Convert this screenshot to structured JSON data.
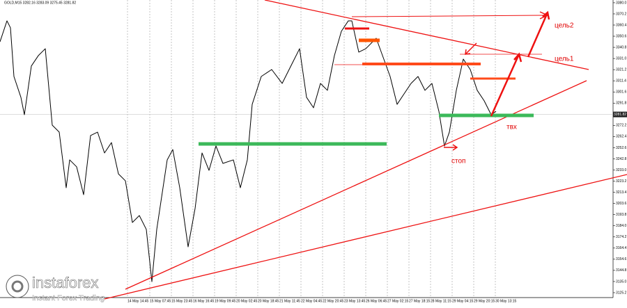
{
  "chart_data": {
    "type": "line",
    "title": "GOLD,M15 3282.16 3283.09 3275.45 3281.82",
    "x": [
      0,
      10,
      15,
      20,
      30,
      35,
      45,
      55,
      65,
      75,
      85,
      95,
      100,
      110,
      120,
      130,
      140,
      150,
      160,
      170,
      180,
      190,
      200,
      210,
      218,
      225,
      240,
      248,
      258,
      270,
      280,
      290,
      300,
      310,
      320,
      335,
      345,
      355,
      362,
      375,
      390,
      405,
      420,
      430,
      440,
      450,
      460,
      470,
      480,
      490,
      500,
      505,
      515,
      525,
      540,
      560,
      570,
      580,
      590,
      600,
      610,
      620,
      630,
      638,
      645,
      655,
      665,
      675,
      685,
      695,
      705,
      712
    ],
    "series": [
      {
        "name": "GOLD,M15",
        "color": "#000000",
        "values": [
          3345.7,
          3364.1,
          3358.0,
          3315.2,
          3296.9,
          3281.6,
          3324.4,
          3333.5,
          3339.6,
          3272.4,
          3266.3,
          3217.4,
          3241.9,
          3235.8,
          3211.3,
          3263.3,
          3266.3,
          3248.0,
          3257.1,
          3229.6,
          3223.5,
          3186.9,
          3193.0,
          3180.8,
          3134.9,
          3180.8,
          3241.9,
          3251.0,
          3217.4,
          3165.5,
          3199.1,
          3248.0,
          3232.7,
          3254.1,
          3238.8,
          3241.9,
          3217.4,
          3241.9,
          3290.7,
          3315.2,
          3321.3,
          3309.1,
          3327.4,
          3339.6,
          3296.9,
          3287.7,
          3309.1,
          3303.0,
          3333.5,
          3354.9,
          3364.1,
          3364.1,
          3336.6,
          3339.6,
          3348.8,
          3315.2,
          3290.7,
          3299.9,
          3309.1,
          3315.2,
          3303.0,
          3309.1,
          3284.6,
          3254.1,
          3266.3,
          3303.0,
          3330.5,
          3321.3,
          3303.0,
          3293.8,
          3281.6,
          3284.6
        ]
      }
    ],
    "xlim": [
      0,
      880
    ],
    "ylim": [
      3120.9,
      3382.4
    ],
    "current_price": 3281.82,
    "yticks": [
      {
        "value": 3380,
        "label": "3380.0"
      },
      {
        "value": 3370.2,
        "label": "3370.2"
      },
      {
        "value": 3360.4,
        "label": "3360.4"
      },
      {
        "value": 3350.6,
        "label": "3350.6"
      },
      {
        "value": 3340.8,
        "label": "3340.8"
      },
      {
        "value": 3331,
        "label": "3331.0"
      },
      {
        "value": 3321.2,
        "label": "3321.2"
      },
      {
        "value": 3311.4,
        "label": "3311.4"
      },
      {
        "value": 3301.6,
        "label": "3301.6"
      },
      {
        "value": 3291.8,
        "label": "3291.8"
      },
      {
        "value": 3272.2,
        "label": "3272.2"
      },
      {
        "value": 3262.4,
        "label": "3262.4"
      },
      {
        "value": 3252.6,
        "label": "3252.6"
      },
      {
        "value": 3242.8,
        "label": "3242.8"
      },
      {
        "value": 3233,
        "label": "3233.0"
      },
      {
        "value": 3223.2,
        "label": "3223.2"
      },
      {
        "value": 3213.4,
        "label": "3213.4"
      },
      {
        "value": 3203.6,
        "label": "3203.6"
      },
      {
        "value": 3193.8,
        "label": "3193.8"
      },
      {
        "value": 3184,
        "label": "3184.0"
      },
      {
        "value": 3174.2,
        "label": "3174.2"
      },
      {
        "value": 3164.4,
        "label": "3164.4"
      },
      {
        "value": 3154.6,
        "label": "3154.6"
      },
      {
        "value": 3144.8,
        "label": "3144.8"
      },
      {
        "value": 3135,
        "label": "3135.0"
      },
      {
        "value": 3125.2,
        "label": "3125.2"
      }
    ],
    "xticks": [
      {
        "value": 183,
        "label": "14 May 14:45"
      },
      {
        "value": 215,
        "label": "15 May 07:45"
      },
      {
        "value": 246,
        "label": "15 May 23:45"
      },
      {
        "value": 277,
        "label": "16 May 16:45"
      },
      {
        "value": 308,
        "label": "19 May 09:45"
      },
      {
        "value": 339,
        "label": "20 May 02:45"
      },
      {
        "value": 370,
        "label": "20 May 18:45"
      },
      {
        "value": 401,
        "label": "21 May 11:45"
      },
      {
        "value": 432,
        "label": "22 May 04:45"
      },
      {
        "value": 463,
        "label": "22 May 20:45"
      },
      {
        "value": 494,
        "label": "23 May 13:45"
      },
      {
        "value": 525,
        "label": "26 May 06:45"
      },
      {
        "value": 556,
        "label": "27 May 02:15"
      },
      {
        "value": 587,
        "label": "27 May 18:15"
      },
      {
        "value": 618,
        "label": "28 May 11:15"
      },
      {
        "value": 649,
        "label": "29 May 04:15"
      },
      {
        "value": 680,
        "label": "29 May 20:15"
      },
      {
        "value": 711,
        "label": "30 May 13:15"
      }
    ],
    "grid": true,
    "annotations": {
      "target2": "цель2",
      "target1": "цель1",
      "entry": "твх",
      "stop": "стоп"
    },
    "logo": {
      "name": "instaforex",
      "tagline": "Instant Forex Trading"
    }
  }
}
